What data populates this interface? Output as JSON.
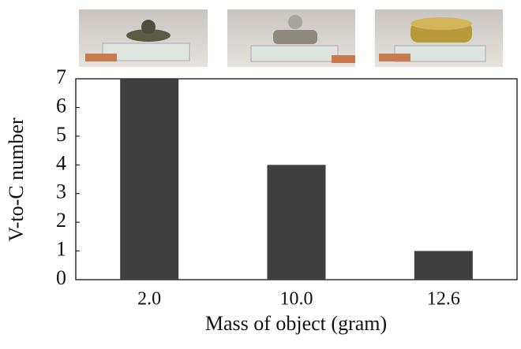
{
  "chart_data": {
    "type": "bar",
    "categories": [
      "2.0",
      "10.0",
      "12.6"
    ],
    "values": [
      7,
      4,
      1
    ],
    "color": "#3f3f3f",
    "ylim": [
      0,
      7
    ],
    "yticks": [
      0,
      1,
      2,
      3,
      4,
      5,
      6,
      7
    ],
    "x_label": "Mass of object (gram)",
    "y_label": "V-to-C number"
  }
}
